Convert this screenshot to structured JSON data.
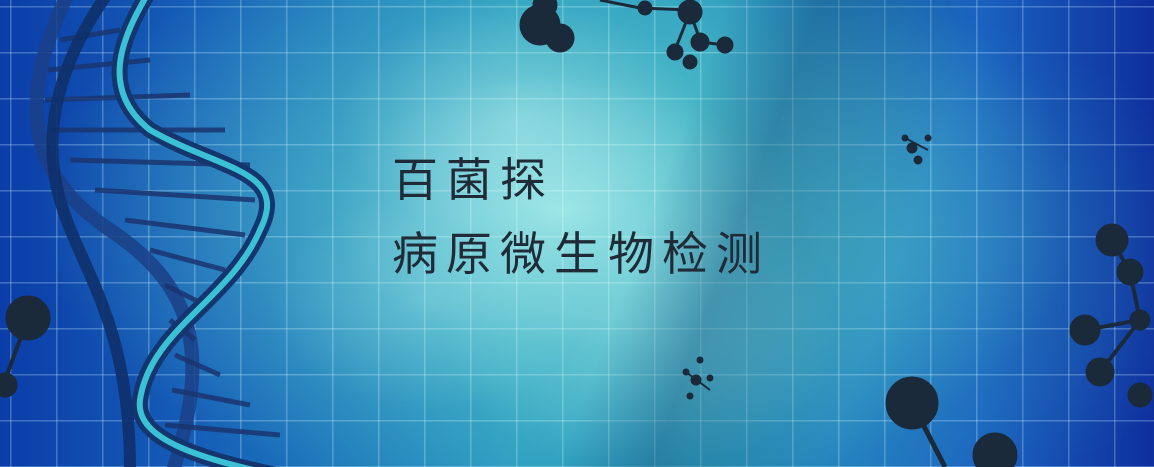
{
  "banner": {
    "title_line1": "百菌探",
    "title_line2": "病原微生物检测"
  },
  "colors": {
    "title_text": "#1f2b36",
    "dna_highlight": "#3fd0e0",
    "dna_dark": "#153a7a",
    "molecule": "#1a2a3a"
  },
  "icons": [
    "dna-helix-icon",
    "molecule-icon"
  ]
}
